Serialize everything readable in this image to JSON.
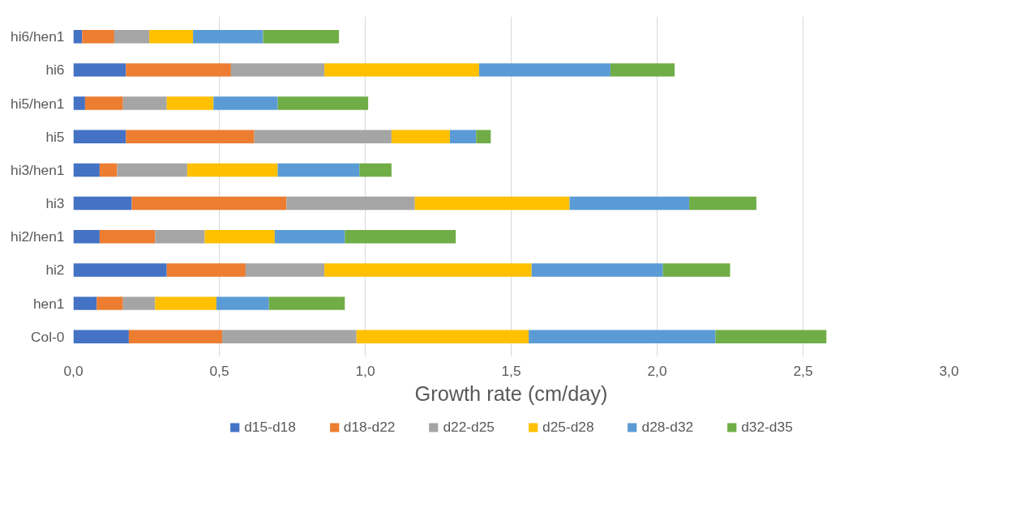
{
  "chart_data": {
    "type": "bar",
    "orientation": "horizontal",
    "stacked": true,
    "xlabel": "Growth rate (cm/day)",
    "categories": [
      "hi6/hen1",
      "hi6",
      "hi5/hen1",
      "hi5",
      "hi3/hen1",
      "hi3",
      "hi2/hen1",
      "hi2",
      "hen1",
      "Col-0"
    ],
    "series": [
      {
        "name": "d15-d18",
        "color": "#4472c4",
        "values": [
          0.03,
          0.18,
          0.04,
          0.18,
          0.09,
          0.2,
          0.09,
          0.32,
          0.08,
          0.19
        ]
      },
      {
        "name": "d18-d22",
        "color": "#ed7d31",
        "values": [
          0.11,
          0.36,
          0.13,
          0.44,
          0.06,
          0.53,
          0.19,
          0.27,
          0.09,
          0.32
        ]
      },
      {
        "name": "d22-d25",
        "color": "#a5a5a5",
        "values": [
          0.12,
          0.32,
          0.15,
          0.47,
          0.24,
          0.44,
          0.17,
          0.27,
          0.11,
          0.46
        ]
      },
      {
        "name": "d25-d28",
        "color": "#ffc000",
        "values": [
          0.15,
          0.53,
          0.16,
          0.2,
          0.31,
          0.53,
          0.24,
          0.71,
          0.21,
          0.59
        ]
      },
      {
        "name": "d28-d32",
        "color": "#5b9bd5",
        "values": [
          0.24,
          0.45,
          0.22,
          0.09,
          0.28,
          0.41,
          0.24,
          0.45,
          0.18,
          0.64
        ]
      },
      {
        "name": "d32-d35",
        "color": "#70ad47",
        "values": [
          0.26,
          0.22,
          0.31,
          0.05,
          0.11,
          0.23,
          0.38,
          0.23,
          0.26,
          0.38
        ]
      }
    ],
    "xlim": [
      0,
      3
    ],
    "xticks": [
      {
        "value": 0,
        "label": "0,0"
      },
      {
        "value": 0.5,
        "label": "0,5"
      },
      {
        "value": 1,
        "label": "1,0"
      },
      {
        "value": 1.5,
        "label": "1,5"
      },
      {
        "value": 2,
        "label": "2,0"
      },
      {
        "value": 2.5,
        "label": "2,5"
      },
      {
        "value": 3,
        "label": "3,0"
      }
    ],
    "grid": "x",
    "legend": "bottom"
  }
}
